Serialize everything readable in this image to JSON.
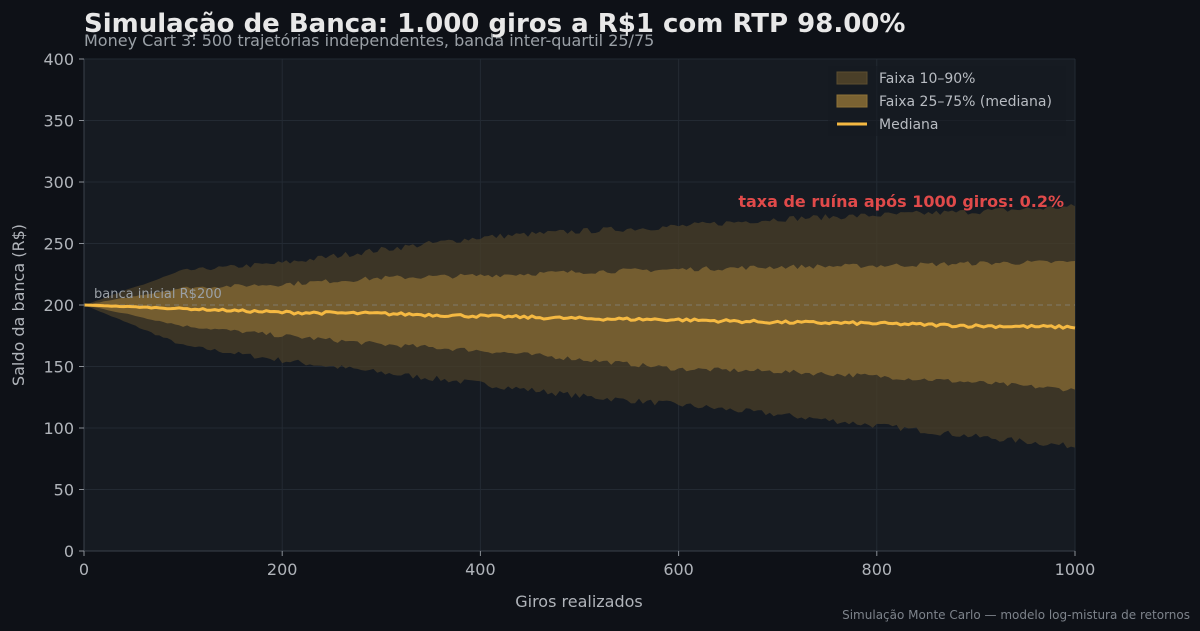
{
  "chart_data": {
    "type": "area",
    "title": "Simulação de Banca: 1.000 giros a R$1 com RTP 98.00%",
    "subtitle": "Money Cart 3: 500 trajetórias independentes, banda inter-quartil 25/75",
    "xlabel": "Giros realizados",
    "ylabel": "Saldo da banca (R$)",
    "xlim": [
      0,
      1000
    ],
    "ylim": [
      0,
      400
    ],
    "xticks": [
      0,
      200,
      400,
      600,
      800,
      1000
    ],
    "yticks": [
      0,
      50,
      100,
      150,
      200,
      250,
      300,
      350,
      400
    ],
    "grid": true,
    "legend_position": "top-right",
    "x": [
      0,
      100,
      200,
      300,
      400,
      500,
      600,
      700,
      800,
      900,
      1000
    ],
    "series": [
      {
        "name": "Faixa 10–90%",
        "color": "#4a3f28",
        "lower": [
          200,
          167,
          155,
          145,
          136,
          126,
          119,
          111,
          102,
          93,
          85
        ],
        "upper": [
          200,
          228,
          234,
          245,
          255,
          260,
          264,
          270,
          273,
          276,
          280
        ]
      },
      {
        "name": "Faixa 25–75% (mediana)",
        "color": "#7a6232",
        "lower": [
          200,
          183,
          175,
          168,
          163,
          156,
          148,
          146,
          142,
          137,
          131
        ],
        "upper": [
          200,
          214,
          217,
          222,
          224,
          227,
          229,
          231,
          232,
          234,
          235
        ]
      },
      {
        "name": "Mediana",
        "color": "#f5b942",
        "values": [
          200,
          197,
          194,
          193,
          191,
          189,
          188,
          186,
          185,
          183,
          182
        ]
      }
    ],
    "reference_line": {
      "y": 200,
      "label": "banca inicial R$200"
    },
    "annotation": "taxa de ruína após 1000 giros: 0.2%"
  },
  "footer": "Simulação Monte Carlo — modelo log-mistura de retornos"
}
